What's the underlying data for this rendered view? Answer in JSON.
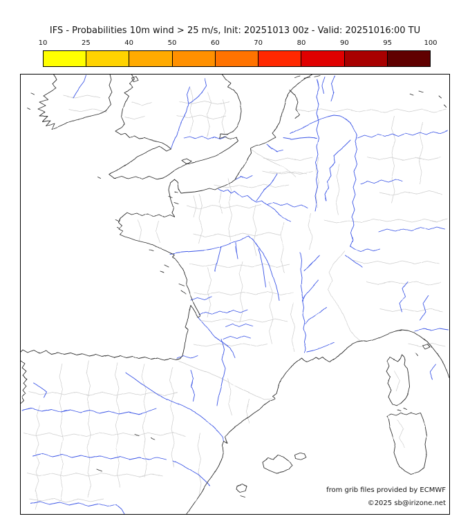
{
  "title": "IFS - Probabilities 10m wind > 25 m/s, Init: 20251013 00z - Valid: 20251016:00 TU",
  "colorbar": {
    "tick_labels": [
      "10",
      "25",
      "40",
      "50",
      "60",
      "70",
      "80",
      "90",
      "95",
      "100"
    ],
    "tick_values": [
      10,
      25,
      40,
      50,
      60,
      70,
      80,
      90,
      95,
      100
    ],
    "segment_colors": [
      "#ffff00",
      "#ffd300",
      "#ffaa00",
      "#ff9000",
      "#ff7300",
      "#ff2800",
      "#e00000",
      "#a80000",
      "#600000"
    ]
  },
  "map": {
    "coastline_color": "#2f2f2f",
    "river_color": "#3b55e6",
    "admin_border_color": "#cccccc",
    "credit_line1": "from grib files provided by ECMWF",
    "credit_line2": "©2025 sb@irizone.net"
  }
}
